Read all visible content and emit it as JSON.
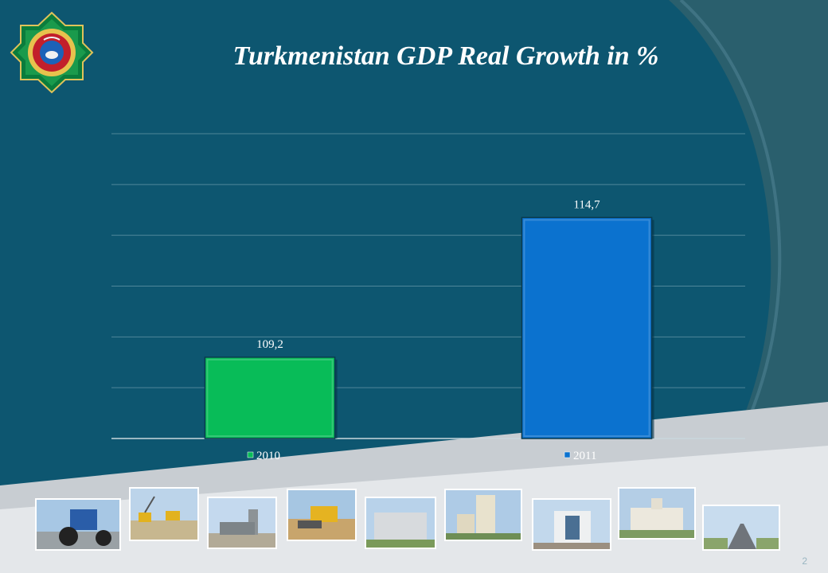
{
  "slide": {
    "title": "Turkmenistan GDP Real Growth in %",
    "page_number": "2",
    "emblem_icon": "turkmenistan-state-emblem-icon",
    "colors": {
      "background": "#0d5670",
      "bar_2010": "#08bc58",
      "bar_2011": "#0b72cf"
    }
  },
  "chart_data": {
    "type": "bar",
    "title": "",
    "categories": [
      "2010",
      "2011"
    ],
    "values": [
      109.2,
      114.7
    ],
    "value_labels": [
      "109,2",
      "114,7"
    ],
    "ylim": [
      106,
      118
    ],
    "grid": true,
    "legend_position": "bottom",
    "legend": [
      "2010",
      "2011"
    ],
    "bar_colors": [
      "#08bc58",
      "#0b72cf"
    ]
  },
  "photos": [
    {
      "name": "tractor-photo"
    },
    {
      "name": "pipeline-construction-photo"
    },
    {
      "name": "industrial-plant-photo"
    },
    {
      "name": "bulldozer-photo"
    },
    {
      "name": "office-building-photo"
    },
    {
      "name": "hotel-tower-photo"
    },
    {
      "name": "modern-building-photo"
    },
    {
      "name": "palace-photo"
    },
    {
      "name": "highway-photo"
    }
  ]
}
